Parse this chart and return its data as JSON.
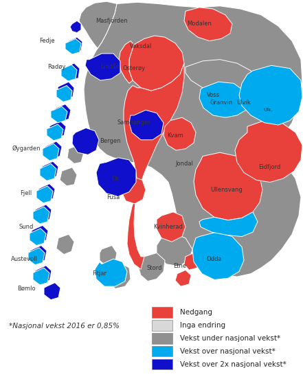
{
  "figsize": [
    4.41,
    5.55
  ],
  "dpi": 100,
  "background_color": "#ffffff",
  "footnote": "*Nasjonal vekst 2016 er 0,85%",
  "footnote_fontsize": 7.5,
  "legend_items": [
    {
      "label": "Nedgang",
      "color": "#e8413c"
    },
    {
      "label": "Inga endring",
      "color": "#d8d8d8"
    },
    {
      "label": "Vekst under nasjonal vekst*",
      "color": "#909090"
    },
    {
      "label": "Vekst over nasjonal vekst*",
      "color": "#00aaee"
    },
    {
      "label": "Vekst over 2x nasjonal vekst*",
      "color": "#1010cc"
    }
  ],
  "map_xlim": [
    0,
    441
  ],
  "map_ylim": [
    0,
    420
  ],
  "label_fontsize": 6,
  "label_color": "#333333"
}
